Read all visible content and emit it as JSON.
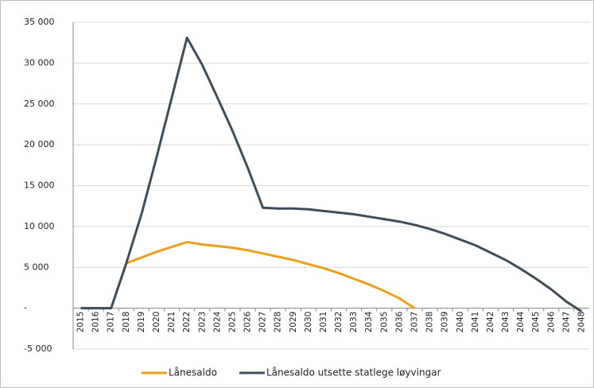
{
  "chart_data": {
    "type": "line",
    "categories": [
      "2015",
      "2016",
      "2017",
      "2018",
      "2019",
      "2020",
      "2021",
      "2022",
      "2023",
      "2024",
      "2025",
      "2026",
      "2027",
      "2028",
      "2029",
      "2030",
      "2031",
      "2032",
      "2033",
      "2034",
      "2035",
      "2036",
      "2037",
      "2038",
      "2039",
      "2040",
      "2041",
      "2042",
      "2043",
      "2044",
      "2045",
      "2046",
      "2047",
      "2048"
    ],
    "series": [
      {
        "name": "Lånesaldo",
        "color": "#e8a020",
        "values": [
          0,
          0,
          0,
          5500,
          6200,
          6900,
          7500,
          8100,
          7800,
          7600,
          7400,
          7100,
          6700,
          6300,
          5900,
          5400,
          4900,
          4300,
          3600,
          2900,
          2100,
          1200,
          0,
          null,
          null,
          null,
          null,
          null,
          null,
          null,
          null,
          null,
          null,
          null
        ]
      },
      {
        "name": "Lånesaldo utsette statlege løyvingar",
        "color": "#3f4d5a",
        "values": [
          0,
          0,
          0,
          5500,
          11500,
          18500,
          25800,
          33100,
          29800,
          25800,
          21700,
          17200,
          12300,
          12200,
          12200,
          12100,
          11900,
          11700,
          11500,
          11200,
          10900,
          10600,
          10200,
          9700,
          9100,
          8400,
          7700,
          6800,
          5900,
          4800,
          3600,
          2300,
          800,
          -400
        ]
      }
    ],
    "ylim": [
      -5000,
      35000
    ],
    "yticks": [
      {
        "value": -5000,
        "label": "-5 000"
      },
      {
        "value": 0,
        "label": "-"
      },
      {
        "value": 5000,
        "label": "5 000"
      },
      {
        "value": 10000,
        "label": "10 000"
      },
      {
        "value": 15000,
        "label": "15 000"
      },
      {
        "value": 20000,
        "label": "20 000"
      },
      {
        "value": 25000,
        "label": "25 000"
      },
      {
        "value": 30000,
        "label": "30 000"
      },
      {
        "value": 35000,
        "label": "35 000"
      }
    ],
    "grid": true
  }
}
